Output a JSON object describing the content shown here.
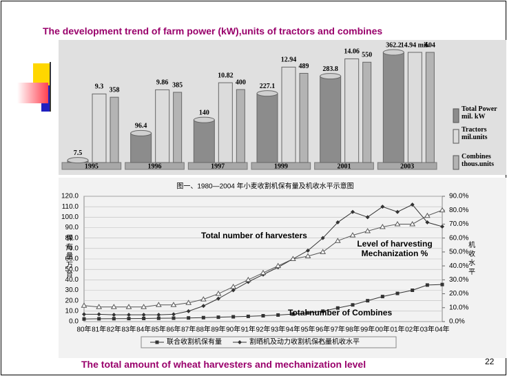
{
  "slide": {
    "title": "The development trend of farm power (kW),units of tractors and combines",
    "caption": "The total amount of wheat harvesters and mechanization level",
    "page_number": "22"
  },
  "chart_data": [
    {
      "type": "bar3d",
      "categories": [
        "1995",
        "1996",
        "1997",
        "1999",
        "2001",
        "2003"
      ],
      "series": [
        {
          "name": "Total Power mil. kW",
          "color": "#8c8c8c",
          "values": [
            7.5,
            96.4,
            140,
            227.1,
            283.8,
            362.2
          ]
        },
        {
          "name": "Tractors mil.units",
          "color": "#dcdcdc",
          "values": [
            9.3,
            9.86,
            10.82,
            12.94,
            14.06,
            14.94
          ],
          "value_labels": [
            "9.3",
            "9.86",
            "10.82",
            "12.94",
            "14.06",
            "14.94 mil."
          ]
        },
        {
          "name": "Combines thous.units",
          "color": "#b4b4b4",
          "values": [
            358,
            385,
            400,
            489,
            550,
            604
          ]
        }
      ]
    },
    {
      "type": "line",
      "title": "图一、1980—2004 年小麦收割机保有量及机收水平示意图",
      "y_label": "保有量 万台",
      "y2_label": "机收水平",
      "categories": [
        "80年",
        "81年",
        "82年",
        "83年",
        "84年",
        "85年",
        "86年",
        "87年",
        "88年",
        "89年",
        "90年",
        "91年",
        "92年",
        "93年",
        "94年",
        "95年",
        "96年",
        "97年",
        "98年",
        "99年",
        "00年",
        "01年",
        "02年",
        "03年",
        "04年"
      ],
      "ylim": [
        0,
        120
      ],
      "yticks": [
        {
          "value": 0,
          "label": "0.0"
        },
        {
          "value": 10,
          "label": "10.0"
        },
        {
          "value": 20,
          "label": "20.0"
        },
        {
          "value": 30,
          "label": "30.0"
        },
        {
          "value": 40,
          "label": "40.0"
        },
        {
          "value": 50,
          "label": "50.0"
        },
        {
          "value": 60,
          "label": "60.0"
        },
        {
          "value": 70,
          "label": "70.0"
        },
        {
          "value": 80,
          "label": "80.0"
        },
        {
          "value": 90,
          "label": "90.0"
        },
        {
          "value": 100,
          "label": "100.0"
        },
        {
          "value": 110,
          "label": "110.0"
        },
        {
          "value": 120,
          "label": "120.0"
        }
      ],
      "y2lim": [
        0,
        90
      ],
      "y2ticks": [
        {
          "value": 0,
          "label": "0.0%"
        },
        {
          "value": 10,
          "label": "10.0%"
        },
        {
          "value": 20,
          "label": "20.0%"
        },
        {
          "value": 30,
          "label": "30.0%"
        },
        {
          "value": 40,
          "label": "40.0%"
        },
        {
          "value": 50,
          "label": "50.0%"
        },
        {
          "value": 60,
          "label": "60.0%"
        },
        {
          "value": 70,
          "label": "70.0%"
        },
        {
          "value": 80,
          "label": "80.0%"
        },
        {
          "value": 90,
          "label": "90.0%"
        }
      ],
      "series": [
        {
          "name": "联合收割机保有量",
          "color": "#333333",
          "marker": "square",
          "values": [
            2.5,
            2.7,
            2.8,
            2.9,
            3.0,
            3.2,
            3.3,
            3.5,
            3.8,
            4.2,
            4.6,
            5.0,
            5.6,
            6.3,
            7.2,
            8.3,
            10,
            13,
            16,
            20,
            24,
            27,
            30,
            35,
            35.5
          ]
        },
        {
          "name": "割晒机及动力收割机保有量",
          "color": "#333333",
          "marker": "diamond",
          "values": [
            7,
            7,
            6.5,
            6.5,
            6.5,
            6.5,
            7,
            10,
            15,
            22,
            30,
            38,
            45,
            52,
            60,
            68,
            80,
            95,
            105,
            100,
            110,
            105,
            112,
            95,
            91
          ]
        },
        {
          "name": "机收水平",
          "color": "#555555",
          "marker": "triangle",
          "axis": "y2",
          "values": [
            11.5,
            10.5,
            10.5,
            10.5,
            10.5,
            12,
            12,
            13.5,
            16,
            20,
            25,
            30,
            35,
            40,
            45,
            47,
            50,
            58,
            62,
            65,
            68,
            70,
            70,
            76,
            80
          ]
        }
      ],
      "annotations": [
        "Total number of harvesters",
        "Level of harvesting Mechanization %",
        "Total number of Combines"
      ]
    }
  ]
}
